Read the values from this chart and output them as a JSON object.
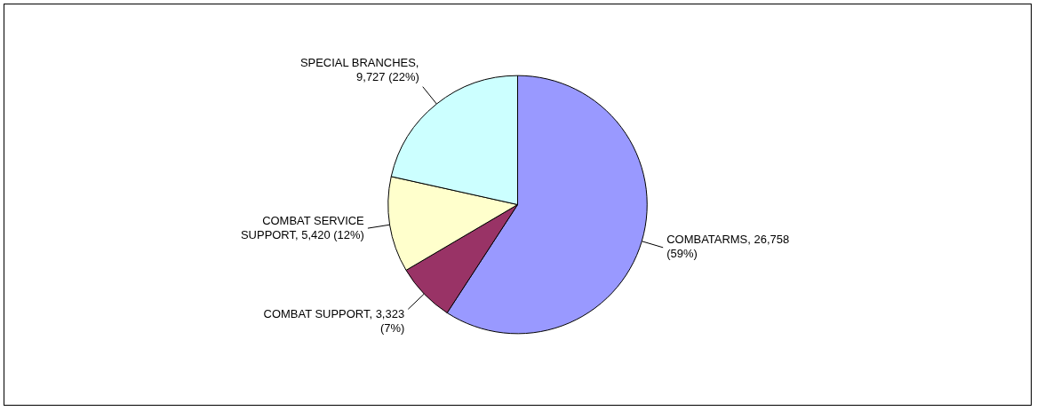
{
  "chart_data": {
    "type": "pie",
    "categories": [
      "COMBATARMS",
      "COMBAT SUPPORT",
      "COMBAT SERVICE SUPPORT",
      "SPECIAL BRANCHES"
    ],
    "values": [
      26758,
      3323,
      5420,
      9727
    ],
    "value_labels": [
      ", 26,758 (59%)",
      ", 3,323 (7%)",
      ", 5,420 (12%)",
      ", 9,727 (22%)"
    ],
    "colors": [
      "#9999ff",
      "#993366",
      "#ffffcc",
      "#ccffff"
    ]
  }
}
